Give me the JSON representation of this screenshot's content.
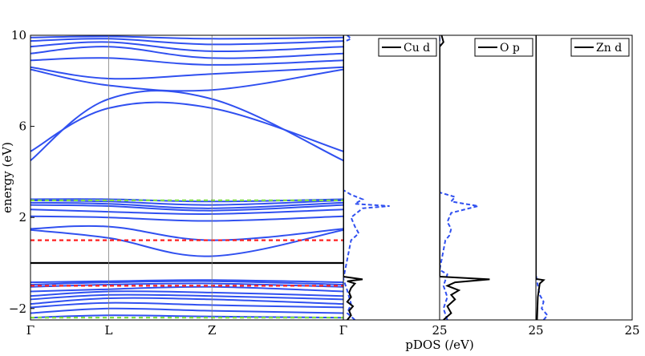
{
  "chart_data": {
    "type": "line",
    "band_panel": {
      "ylabel": "energy (eV)",
      "ylim": [
        -2.5,
        10
      ],
      "y_ticks": [
        -2,
        2,
        6,
        10
      ],
      "y_tick_labels": [
        "−2",
        "2",
        "6",
        "10"
      ],
      "k_points": [
        "Γ",
        "L",
        "Z",
        "Γ"
      ],
      "k_positions": [
        0,
        0.25,
        0.58,
        1.0
      ],
      "band_color": "#3050f0",
      "fermi_level": 0,
      "fermi_color": "#000000",
      "red_dashed_levels": [
        1.0,
        -1.0
      ],
      "red_color": "#ff2020",
      "green_dashed_levels": [
        2.75,
        -2.4
      ],
      "green_color": "#7fe040",
      "bands": [
        {
          "k": [
            0,
            0.25,
            0.58,
            1.0
          ],
          "e": [
            -2.4,
            -2.3,
            -2.35,
            -2.4
          ]
        },
        {
          "k": [
            0,
            0.25,
            0.58,
            1.0
          ],
          "e": [
            -2.2,
            -2.0,
            -2.1,
            -2.2
          ]
        },
        {
          "k": [
            0,
            0.25,
            0.58,
            1.0
          ],
          "e": [
            -1.95,
            -1.75,
            -1.85,
            -1.95
          ]
        },
        {
          "k": [
            0,
            0.25,
            0.58,
            1.0
          ],
          "e": [
            -1.8,
            -1.55,
            -1.6,
            -1.8
          ]
        },
        {
          "k": [
            0,
            0.25,
            0.58,
            1.0
          ],
          "e": [
            -1.6,
            -1.4,
            -1.45,
            -1.6
          ]
        },
        {
          "k": [
            0,
            0.25,
            0.58,
            1.0
          ],
          "e": [
            -1.45,
            -1.25,
            -1.3,
            -1.45
          ]
        },
        {
          "k": [
            0,
            0.25,
            0.58,
            1.0
          ],
          "e": [
            -1.25,
            -1.15,
            -1.05,
            -1.25
          ]
        },
        {
          "k": [
            0,
            0.25,
            0.58,
            1.0
          ],
          "e": [
            -1.05,
            -0.95,
            -0.9,
            -1.05
          ]
        },
        {
          "k": [
            0,
            0.25,
            0.58,
            1.0
          ],
          "e": [
            -0.95,
            -0.85,
            -0.8,
            -0.95
          ]
        },
        {
          "k": [
            0,
            0.25,
            0.58,
            1.0
          ],
          "e": [
            -0.85,
            -0.8,
            -0.75,
            -0.85
          ]
        },
        {
          "k": [
            0,
            0.25,
            0.58,
            1.0
          ],
          "e": [
            1.45,
            1.1,
            0.3,
            1.45
          ]
        },
        {
          "k": [
            0,
            0.25,
            0.58,
            1.0
          ],
          "e": [
            1.5,
            1.6,
            1.0,
            1.5
          ]
        },
        {
          "k": [
            0,
            0.25,
            0.58,
            1.0
          ],
          "e": [
            2.05,
            2.0,
            1.85,
            2.05
          ]
        },
        {
          "k": [
            0,
            0.25,
            0.58,
            1.0
          ],
          "e": [
            2.35,
            2.25,
            2.15,
            2.35
          ]
        },
        {
          "k": [
            0,
            0.25,
            0.58,
            1.0
          ],
          "e": [
            2.55,
            2.5,
            2.3,
            2.55
          ]
        },
        {
          "k": [
            0,
            0.25,
            0.58,
            1.0
          ],
          "e": [
            2.65,
            2.6,
            2.4,
            2.65
          ]
        },
        {
          "k": [
            0,
            0.25,
            0.58,
            1.0
          ],
          "e": [
            2.75,
            2.7,
            2.55,
            2.75
          ]
        },
        {
          "k": [
            0,
            0.25,
            0.58,
            1.0
          ],
          "e": [
            2.8,
            2.8,
            2.7,
            2.8
          ]
        },
        {
          "k": [
            0,
            0.25,
            0.58,
            1.0
          ],
          "e": [
            4.5,
            7.2,
            7.2,
            4.5
          ]
        },
        {
          "k": [
            0,
            0.25,
            0.58,
            1.0
          ],
          "e": [
            4.9,
            6.8,
            6.8,
            4.9
          ]
        },
        {
          "k": [
            0,
            0.25,
            0.58,
            1.0
          ],
          "e": [
            8.5,
            7.8,
            7.6,
            8.5
          ]
        },
        {
          "k": [
            0,
            0.25,
            0.58,
            1.0
          ],
          "e": [
            8.6,
            8.1,
            8.3,
            8.6
          ]
        },
        {
          "k": [
            0,
            0.25,
            0.58,
            1.0
          ],
          "e": [
            8.9,
            9.0,
            8.7,
            8.9
          ]
        },
        {
          "k": [
            0,
            0.25,
            0.58,
            1.0
          ],
          "e": [
            9.2,
            9.5,
            9.0,
            9.2
          ]
        },
        {
          "k": [
            0,
            0.25,
            0.58,
            1.0
          ],
          "e": [
            9.5,
            9.7,
            9.3,
            9.5
          ]
        },
        {
          "k": [
            0,
            0.25,
            0.58,
            1.0
          ],
          "e": [
            9.75,
            9.85,
            9.6,
            9.75
          ]
        },
        {
          "k": [
            0,
            0.25,
            0.58,
            1.0
          ],
          "e": [
            9.9,
            9.95,
            9.85,
            9.9
          ]
        }
      ]
    },
    "pdos_panels": [
      {
        "legend": "Cu d",
        "x_tick_left": "",
        "xlim": [
          0,
          25
        ],
        "solid": [
          {
            "e": -2.5,
            "d": 1
          },
          {
            "e": -2.3,
            "d": 2
          },
          {
            "e": -2.1,
            "d": 1.5
          },
          {
            "e": -1.9,
            "d": 2.5
          },
          {
            "e": -1.7,
            "d": 1
          },
          {
            "e": -1.5,
            "d": 2
          },
          {
            "e": -1.3,
            "d": 1.5
          },
          {
            "e": -1.1,
            "d": 2
          },
          {
            "e": -0.9,
            "d": 3
          },
          {
            "e": -0.8,
            "d": 1
          },
          {
            "e": -0.72,
            "d": 5
          },
          {
            "e": -0.6,
            "d": 0
          },
          {
            "e": 10,
            "d": 0
          }
        ],
        "dashed": [
          {
            "e": -2.5,
            "d": 3
          },
          {
            "e": -2.2,
            "d": 1
          },
          {
            "e": -1.8,
            "d": 2
          },
          {
            "e": -1.2,
            "d": 1
          },
          {
            "e": -0.7,
            "d": 0
          },
          {
            "e": 1.0,
            "d": 2
          },
          {
            "e": 1.3,
            "d": 4
          },
          {
            "e": 1.6,
            "d": 3
          },
          {
            "e": 2.0,
            "d": 2
          },
          {
            "e": 2.2,
            "d": 3.5
          },
          {
            "e": 2.4,
            "d": 5
          },
          {
            "e": 2.5,
            "d": 12
          },
          {
            "e": 2.6,
            "d": 3
          },
          {
            "e": 2.8,
            "d": 5
          },
          {
            "e": 3.0,
            "d": 2
          },
          {
            "e": 3.2,
            "d": 0
          },
          {
            "e": 9.7,
            "d": 0
          },
          {
            "e": 9.85,
            "d": 2
          },
          {
            "e": 10,
            "d": 1
          }
        ]
      },
      {
        "legend": "O p",
        "x_tick_left": "25",
        "xlim": [
          0,
          25
        ],
        "solid": [
          {
            "e": -2.5,
            "d": 1
          },
          {
            "e": -2.2,
            "d": 3
          },
          {
            "e": -1.9,
            "d": 2
          },
          {
            "e": -1.6,
            "d": 4
          },
          {
            "e": -1.4,
            "d": 3
          },
          {
            "e": -1.2,
            "d": 5
          },
          {
            "e": -1.0,
            "d": 2
          },
          {
            "e": -0.85,
            "d": 4
          },
          {
            "e": -0.72,
            "d": 13
          },
          {
            "e": -0.6,
            "d": 0
          },
          {
            "e": 9.5,
            "d": 0
          },
          {
            "e": 9.7,
            "d": 1
          },
          {
            "e": 10,
            "d": 0.5
          }
        ],
        "dashed": [
          {
            "e": -2.5,
            "d": 2
          },
          {
            "e": -2.0,
            "d": 1
          },
          {
            "e": -1.5,
            "d": 2
          },
          {
            "e": -1.0,
            "d": 1
          },
          {
            "e": -0.5,
            "d": 2
          },
          {
            "e": -0.3,
            "d": 0
          },
          {
            "e": 1.0,
            "d": 1.5
          },
          {
            "e": 1.2,
            "d": 2.5
          },
          {
            "e": 1.5,
            "d": 3
          },
          {
            "e": 1.8,
            "d": 2
          },
          {
            "e": 2.2,
            "d": 3
          },
          {
            "e": 2.5,
            "d": 10
          },
          {
            "e": 2.7,
            "d": 3
          },
          {
            "e": 2.9,
            "d": 4
          },
          {
            "e": 3.1,
            "d": 0
          },
          {
            "e": 10,
            "d": 0
          }
        ]
      },
      {
        "legend": "Zn d",
        "x_tick_left": "25",
        "x_tick_right": "25",
        "xlim": [
          0,
          25
        ],
        "solid": [
          {
            "e": -2.5,
            "d": 0.3
          },
          {
            "e": -1.5,
            "d": 0.5
          },
          {
            "e": -0.9,
            "d": 1
          },
          {
            "e": -0.75,
            "d": 2
          },
          {
            "e": -0.7,
            "d": 0
          },
          {
            "e": 10,
            "d": 0
          }
        ],
        "dashed": [
          {
            "e": -2.5,
            "d": 2
          },
          {
            "e": -2.3,
            "d": 3
          },
          {
            "e": -2.0,
            "d": 1.5
          },
          {
            "e": -1.7,
            "d": 2
          },
          {
            "e": -1.4,
            "d": 1
          },
          {
            "e": -1.0,
            "d": 0.5
          },
          {
            "e": -0.5,
            "d": 0
          },
          {
            "e": 10,
            "d": 0
          }
        ]
      }
    ],
    "pdos_xlabel": "pDOS (/eV)",
    "pdos_solid_color": "#000000",
    "pdos_dashed_color": "#3050f0"
  }
}
